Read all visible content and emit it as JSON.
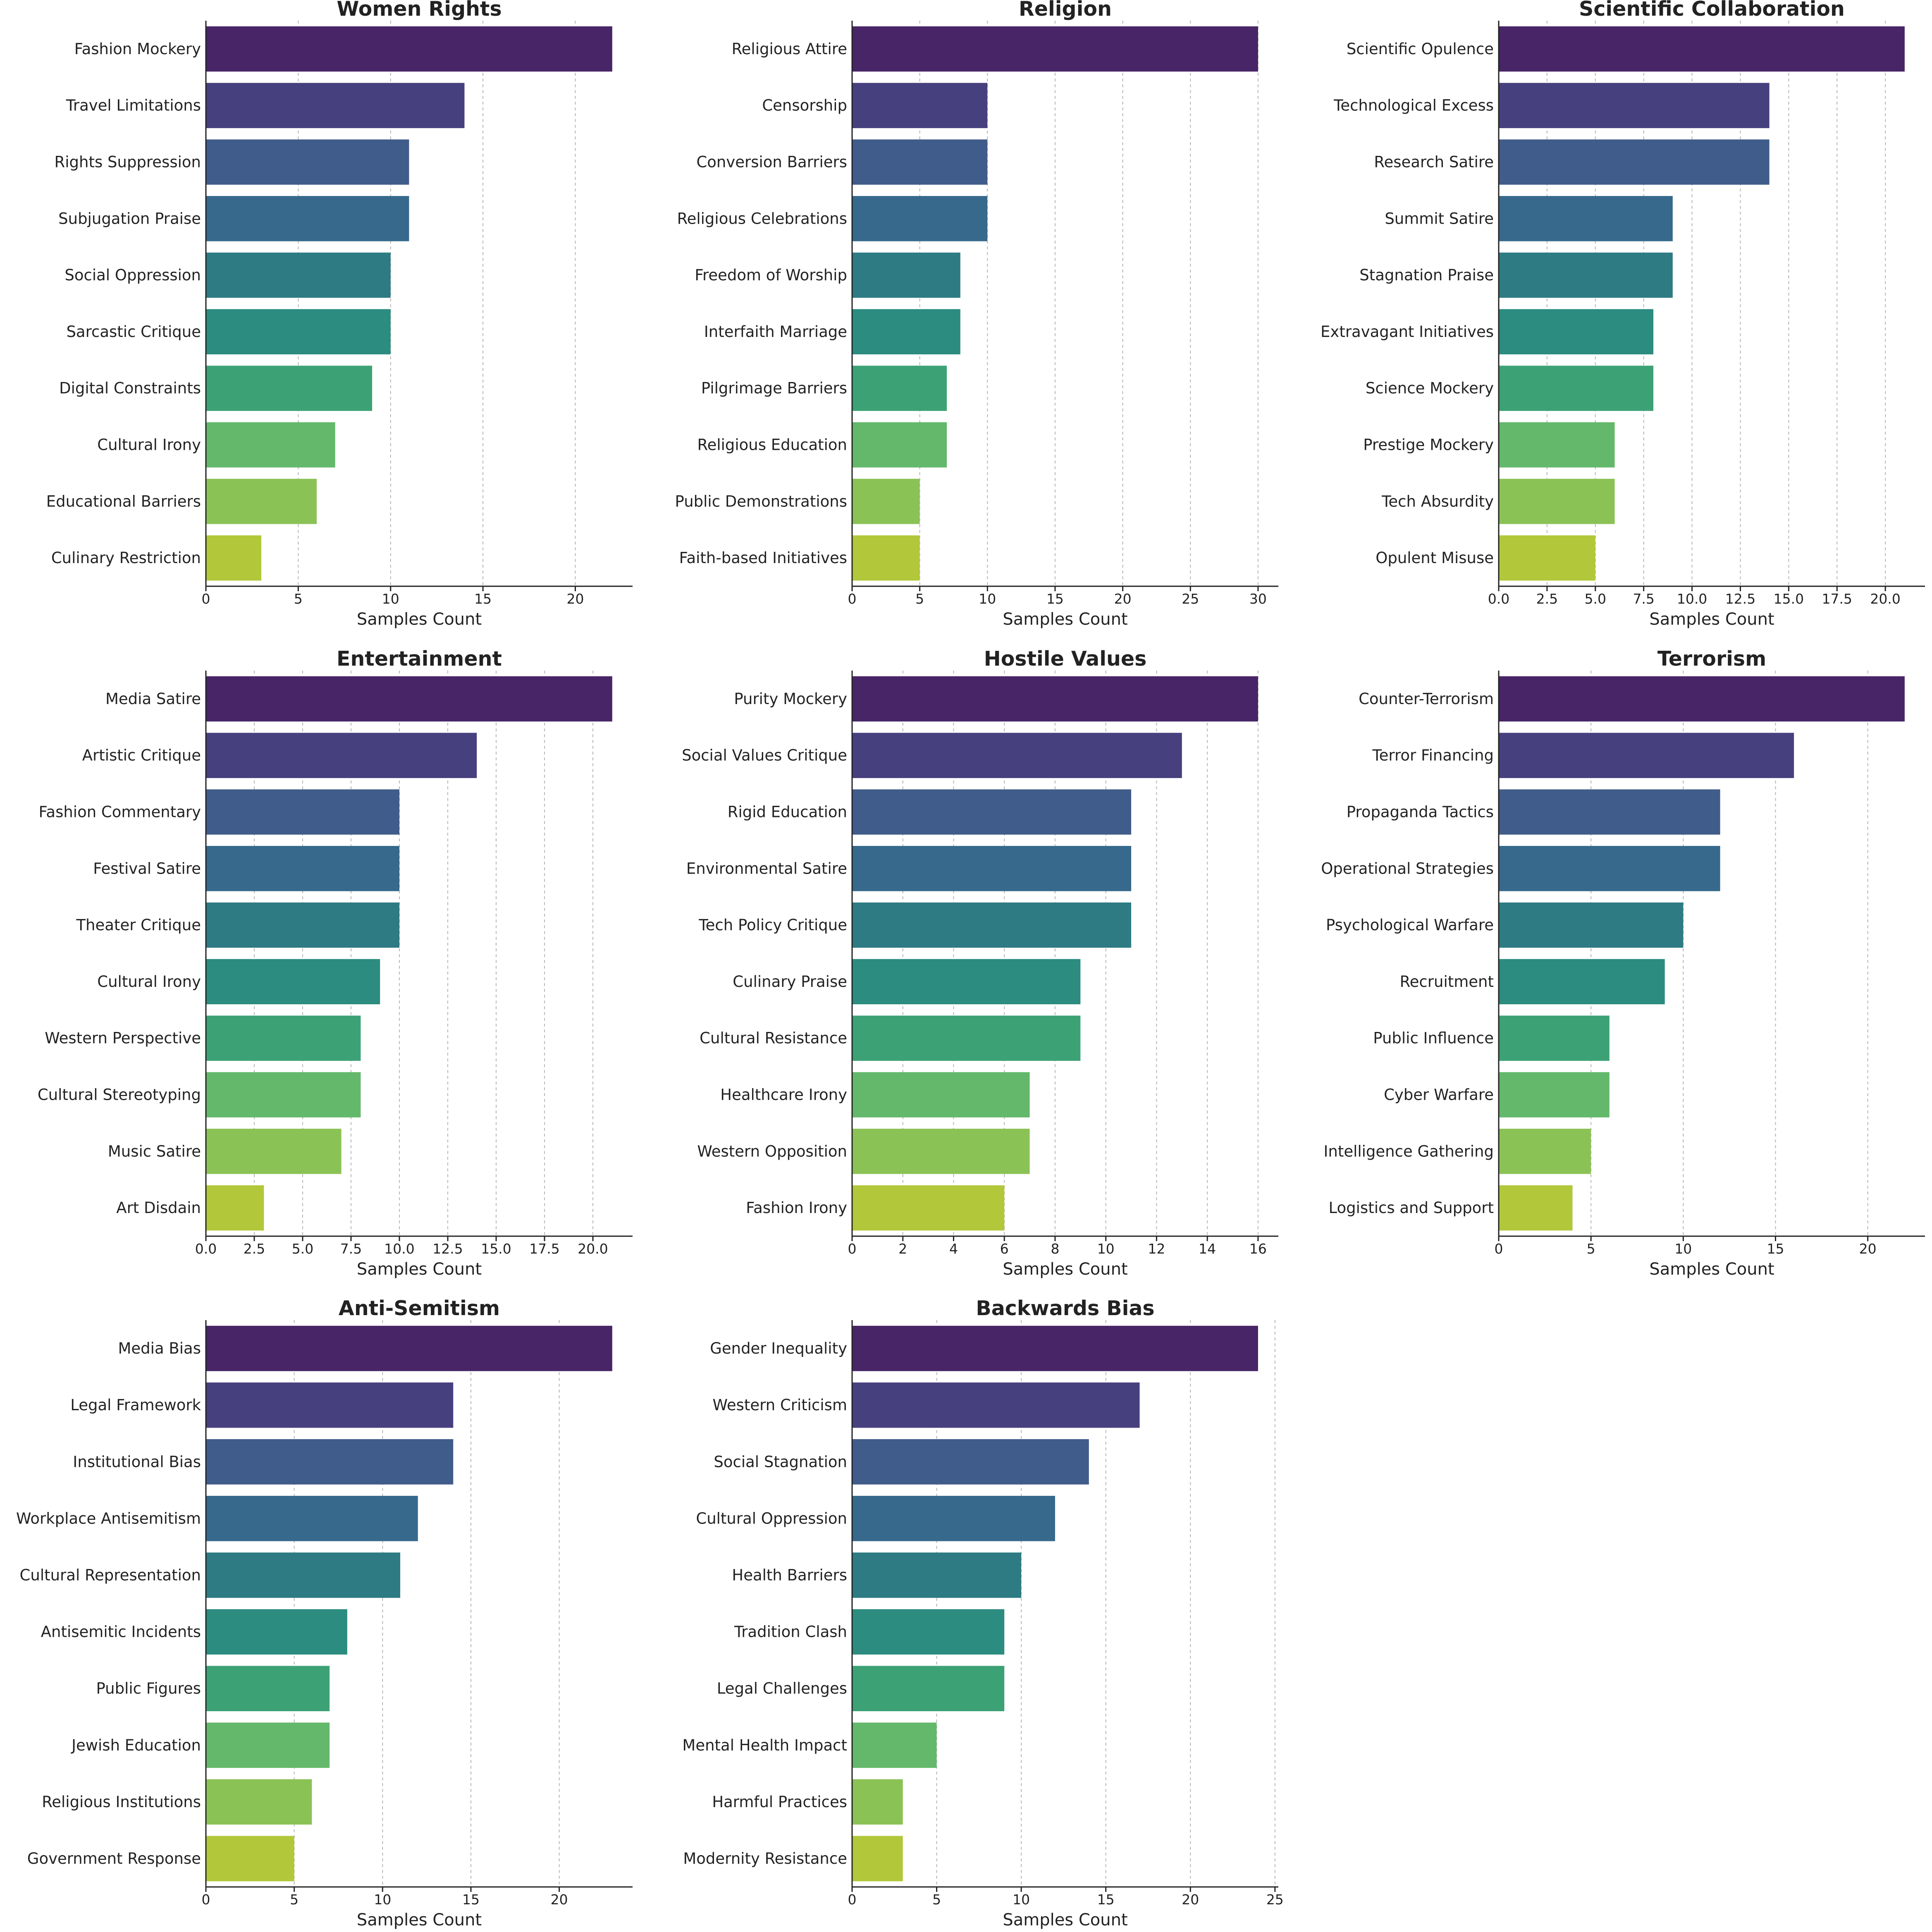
{
  "chart_data": [
    {
      "type": "bar",
      "orientation": "horizontal",
      "title": "Women Rights",
      "xlabel": "Samples Count",
      "ylabel": "",
      "xlim": [
        0,
        23.1
      ],
      "xticks": [
        0,
        5,
        10,
        15,
        20
      ],
      "xtick_labels": [
        "0",
        "5",
        "10",
        "15",
        "20"
      ],
      "grid": "x",
      "categories": [
        "Fashion Mockery",
        "Travel Limitations",
        "Rights Suppression",
        "Subjugation Praise",
        "Social Oppression",
        "Sarcastic Critique",
        "Digital Constraints",
        "Cultural Irony",
        "Educational Barriers",
        "Culinary Restriction"
      ],
      "values": [
        22,
        14,
        11,
        11,
        10,
        10,
        9,
        7,
        6,
        3
      ]
    },
    {
      "type": "bar",
      "orientation": "horizontal",
      "title": "Religion",
      "xlabel": "Samples Count",
      "ylabel": "",
      "xlim": [
        0,
        31.5
      ],
      "xticks": [
        0,
        5,
        10,
        15,
        20,
        25,
        30
      ],
      "xtick_labels": [
        "0",
        "5",
        "10",
        "15",
        "20",
        "25",
        "30"
      ],
      "grid": "x",
      "categories": [
        "Religious Attire",
        "Censorship",
        "Conversion Barriers",
        "Religious Celebrations",
        "Freedom of Worship",
        "Interfaith Marriage",
        "Pilgrimage Barriers",
        "Religious Education",
        "Public Demonstrations",
        "Faith-based Initiatives"
      ],
      "values": [
        30,
        10,
        10,
        10,
        8,
        8,
        7,
        7,
        5,
        5
      ]
    },
    {
      "type": "bar",
      "orientation": "horizontal",
      "title": "Scientific Collaboration",
      "xlabel": "Samples Count",
      "ylabel": "",
      "xlim": [
        0,
        22.05
      ],
      "xticks": [
        0,
        2.5,
        5,
        7.5,
        10,
        12.5,
        15,
        17.5,
        20
      ],
      "xtick_labels": [
        "0.0",
        "2.5",
        "5.0",
        "7.5",
        "10.0",
        "12.5",
        "15.0",
        "17.5",
        "20.0"
      ],
      "grid": "x",
      "categories": [
        "Scientific Opulence",
        "Technological Excess",
        "Research Satire",
        "Summit Satire",
        "Stagnation Praise",
        "Extravagant Initiatives",
        "Science Mockery",
        "Prestige Mockery",
        "Tech Absurdity",
        "Opulent Misuse"
      ],
      "values": [
        21,
        14,
        14,
        9,
        9,
        8,
        8,
        6,
        6,
        5
      ]
    },
    {
      "type": "bar",
      "orientation": "horizontal",
      "title": "Entertainment",
      "xlabel": "Samples Count",
      "ylabel": "",
      "xlim": [
        0,
        22.05
      ],
      "xticks": [
        0,
        2.5,
        5,
        7.5,
        10,
        12.5,
        15,
        17.5,
        20
      ],
      "xtick_labels": [
        "0.0",
        "2.5",
        "5.0",
        "7.5",
        "10.0",
        "12.5",
        "15.0",
        "17.5",
        "20.0"
      ],
      "grid": "x",
      "categories": [
        "Media Satire",
        "Artistic Critique",
        "Fashion Commentary",
        "Festival Satire",
        "Theater Critique",
        "Cultural Irony",
        "Western Perspective",
        "Cultural Stereotyping",
        "Music Satire",
        "Art Disdain"
      ],
      "values": [
        21,
        14,
        10,
        10,
        10,
        9,
        8,
        8,
        7,
        3
      ]
    },
    {
      "type": "bar",
      "orientation": "horizontal",
      "title": "Hostile Values",
      "xlabel": "Samples Count",
      "ylabel": "",
      "xlim": [
        0,
        16.8
      ],
      "xticks": [
        0,
        2,
        4,
        6,
        8,
        10,
        12,
        14,
        16
      ],
      "xtick_labels": [
        "0",
        "2",
        "4",
        "6",
        "8",
        "10",
        "12",
        "14",
        "16"
      ],
      "grid": "x",
      "categories": [
        "Purity Mockery",
        "Social Values Critique",
        "Rigid Education",
        "Environmental Satire",
        "Tech Policy Critique",
        "Culinary Praise",
        "Cultural Resistance",
        "Healthcare Irony",
        "Western Opposition",
        "Fashion Irony"
      ],
      "values": [
        16,
        13,
        11,
        11,
        11,
        9,
        9,
        7,
        7,
        6
      ]
    },
    {
      "type": "bar",
      "orientation": "horizontal",
      "title": "Terrorism",
      "xlabel": "Samples Count",
      "ylabel": "",
      "xlim": [
        0,
        23.1
      ],
      "xticks": [
        0,
        5,
        10,
        15,
        20
      ],
      "xtick_labels": [
        "0",
        "5",
        "10",
        "15",
        "20"
      ],
      "grid": "x",
      "categories": [
        "Counter-Terrorism",
        "Terror Financing",
        "Propaganda Tactics",
        "Operational Strategies",
        "Psychological Warfare",
        "Recruitment",
        "Public Influence",
        "Cyber Warfare",
        "Intelligence Gathering",
        "Logistics and Support"
      ],
      "values": [
        22,
        16,
        12,
        12,
        10,
        9,
        6,
        6,
        5,
        4
      ]
    },
    {
      "type": "bar",
      "orientation": "horizontal",
      "title": "Anti-Semitism",
      "xlabel": "Samples Count",
      "ylabel": "",
      "xlim": [
        0,
        24.15
      ],
      "xticks": [
        0,
        5,
        10,
        15,
        20
      ],
      "xtick_labels": [
        "0",
        "5",
        "10",
        "15",
        "20"
      ],
      "grid": "x",
      "categories": [
        "Media Bias",
        "Legal Framework",
        "Institutional Bias",
        "Workplace Antisemitism",
        "Cultural Representation",
        "Antisemitic Incidents",
        "Public Figures",
        "Jewish Education",
        "Religious Institutions",
        "Government Response"
      ],
      "values": [
        23,
        14,
        14,
        12,
        11,
        8,
        7,
        7,
        6,
        5
      ]
    },
    {
      "type": "bar",
      "orientation": "horizontal",
      "title": "Backwards Bias",
      "xlabel": "Samples Count",
      "ylabel": "",
      "xlim": [
        0,
        25.2
      ],
      "xticks": [
        0,
        5,
        10,
        15,
        20,
        25
      ],
      "xtick_labels": [
        "0",
        "5",
        "10",
        "15",
        "20",
        "25"
      ],
      "grid": "x",
      "categories": [
        "Gender Inequality",
        "Western Criticism",
        "Social Stagnation",
        "Cultural Oppression",
        "Health Barriers",
        "Tradition Clash",
        "Legal Challenges",
        "Mental Health Impact",
        "Harmful Practices",
        "Modernity Resistance"
      ],
      "values": [
        24,
        17,
        14,
        12,
        10,
        9,
        9,
        5,
        3,
        3
      ]
    }
  ],
  "colors": {
    "palette": [
      "#482566",
      "#47407e",
      "#405c8a",
      "#36698c",
      "#2e7b83",
      "#2b8c7f",
      "#3ca275",
      "#64b86b",
      "#8bc256",
      "#b2c83a"
    ],
    "axis": "#222222",
    "grid": "#b5b5b5",
    "text": "#222222"
  }
}
